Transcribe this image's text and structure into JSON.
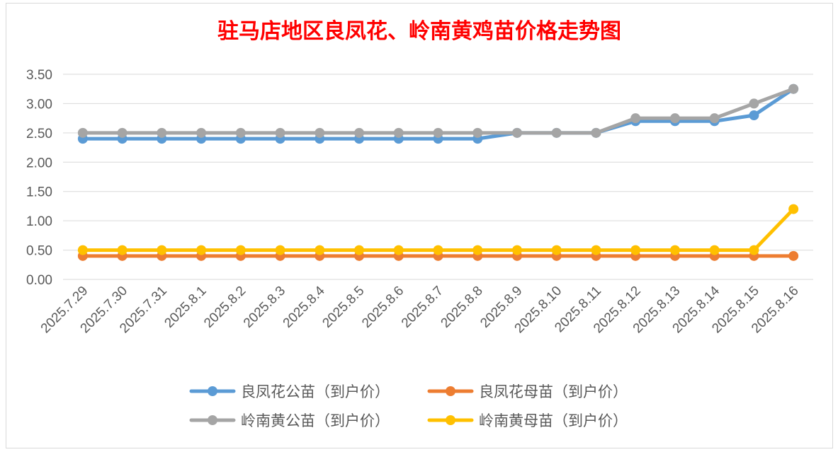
{
  "chart_data": {
    "type": "line",
    "title": "驻马店地区良凤花、岭南黄鸡苗价格走势图",
    "xlabel": "",
    "ylabel": "",
    "categories": [
      "2025.7.29",
      "2025.7.30",
      "2025.7.31",
      "2025.8.1",
      "2025.8.2",
      "2025.8.3",
      "2025.8.4",
      "2025.8.5",
      "2025.8.6",
      "2025.8.7",
      "2025.8.8",
      "2025.8.9",
      "2025.8.10",
      "2025.8.11",
      "2025.8.12",
      "2025.8.13",
      "2025.8.14",
      "2025.8.15",
      "2025.8.16"
    ],
    "ylim": [
      0,
      3.5
    ],
    "yticks": [
      "0.00",
      "0.50",
      "1.00",
      "1.50",
      "2.00",
      "2.50",
      "3.00",
      "3.50"
    ],
    "grid": true,
    "legend_position": "bottom",
    "series": [
      {
        "name": "良凤花公苗（到户价）",
        "color": "#5b9bd5",
        "values": [
          2.4,
          2.4,
          2.4,
          2.4,
          2.4,
          2.4,
          2.4,
          2.4,
          2.4,
          2.4,
          2.4,
          2.5,
          2.5,
          2.5,
          2.7,
          2.7,
          2.7,
          2.8,
          3.25
        ]
      },
      {
        "name": "良凤花母苗（到户价）",
        "color": "#ed7d31",
        "values": [
          0.4,
          0.4,
          0.4,
          0.4,
          0.4,
          0.4,
          0.4,
          0.4,
          0.4,
          0.4,
          0.4,
          0.4,
          0.4,
          0.4,
          0.4,
          0.4,
          0.4,
          0.4,
          0.4
        ]
      },
      {
        "name": "岭南黄公苗（到户价）",
        "color": "#a5a5a5",
        "values": [
          2.5,
          2.5,
          2.5,
          2.5,
          2.5,
          2.5,
          2.5,
          2.5,
          2.5,
          2.5,
          2.5,
          2.5,
          2.5,
          2.5,
          2.75,
          2.75,
          2.75,
          3.0,
          3.25
        ]
      },
      {
        "name": "岭南黄母苗（到户价）",
        "color": "#ffc000",
        "values": [
          0.5,
          0.5,
          0.5,
          0.5,
          0.5,
          0.5,
          0.5,
          0.5,
          0.5,
          0.5,
          0.5,
          0.5,
          0.5,
          0.5,
          0.5,
          0.5,
          0.5,
          0.5,
          1.2
        ]
      }
    ]
  }
}
